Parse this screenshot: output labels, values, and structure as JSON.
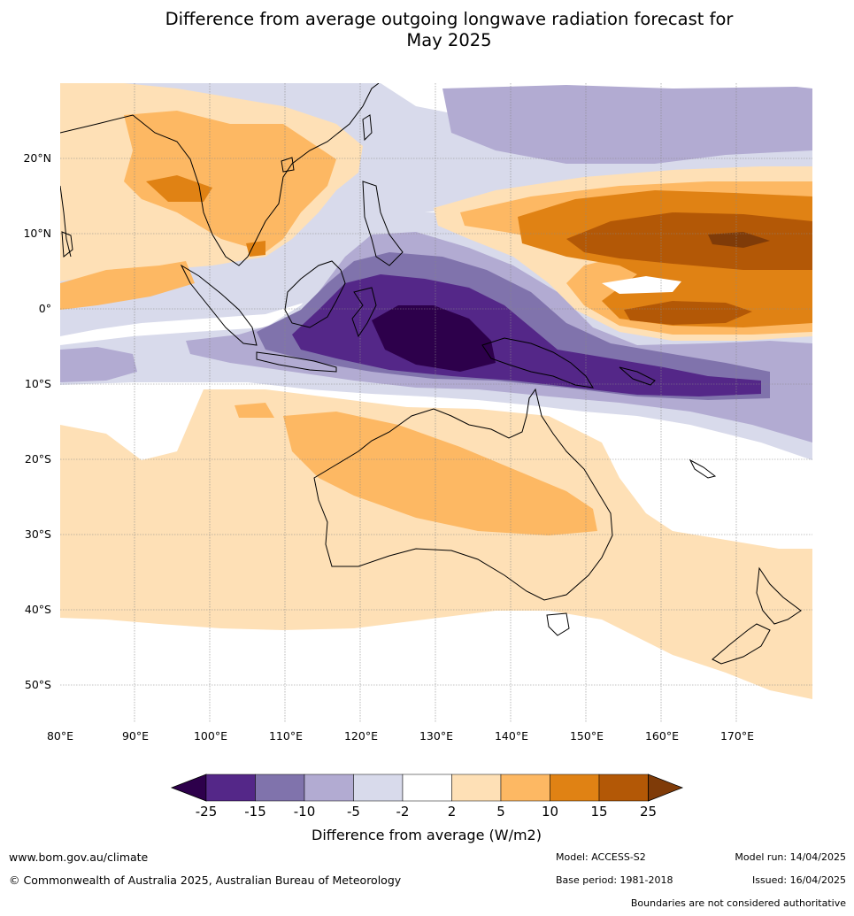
{
  "title_line1": "Difference from average outgoing longwave radiation forecast for",
  "title_line2": "May 2025",
  "lat_labels": [
    "20°N",
    "10°N",
    "0°",
    "10°S",
    "20°S",
    "30°S",
    "40°S",
    "50°S"
  ],
  "lon_labels": [
    "80°E",
    "90°E",
    "100°E",
    "110°E",
    "120°E",
    "130°E",
    "140°E",
    "150°E",
    "160°E",
    "170°E"
  ],
  "colorbar": {
    "ticks": [
      "-25",
      "-15",
      "-10",
      "-5",
      "-2",
      "2",
      "5",
      "10",
      "15",
      "25"
    ],
    "colors": [
      "#2d004b",
      "#542788",
      "#8073ac",
      "#b2abd2",
      "#d8daeb",
      "#ffffff",
      "#fee0b6",
      "#fdb863",
      "#e08214",
      "#b35806",
      "#7f3b08"
    ],
    "label": "Difference from average (W/m2)"
  },
  "footer": {
    "url": "www.bom.gov.au/climate",
    "copyright": "© Commonwealth of Australia 2025, Australian Bureau of Meteorology",
    "model": "Model: ACCESS-S2",
    "base_period": "Base period: 1981-2018",
    "model_run": "Model run: 14/04/2025",
    "issued": "Issued: 16/04/2025",
    "disclaimer": "Boundaries are not considered authoritative"
  }
}
